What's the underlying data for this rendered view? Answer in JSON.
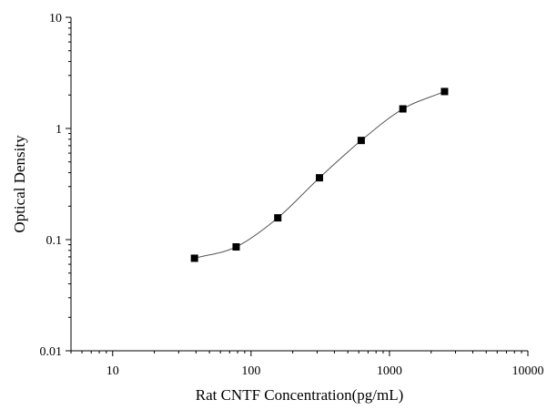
{
  "chart_data": {
    "type": "scatter",
    "title": "",
    "xlabel": "Rat CNTF Concentration(pg/mL)",
    "ylabel": "Optical Density",
    "x_scale": "log",
    "y_scale": "log",
    "xlim": [
      5,
      10000
    ],
    "ylim": [
      0.01,
      10
    ],
    "x_ticks": [
      {
        "value": 10,
        "label": "10"
      },
      {
        "value": 100,
        "label": "100"
      },
      {
        "value": 1000,
        "label": "1000"
      },
      {
        "value": 10000,
        "label": "10000"
      }
    ],
    "y_ticks": [
      {
        "value": 0.01,
        "label": "0.01"
      },
      {
        "value": 0.1,
        "label": "0.1"
      },
      {
        "value": 1,
        "label": "1"
      },
      {
        "value": 10,
        "label": "10"
      }
    ],
    "grid": false,
    "legend": "none",
    "series": [
      {
        "marker": "square",
        "fitted_curve": true,
        "color": "#000000",
        "curve_color": "#555555",
        "x": [
          39,
          78,
          156,
          312,
          625,
          1250,
          2500
        ],
        "y": [
          0.068,
          0.086,
          0.157,
          0.36,
          0.78,
          1.5,
          2.15
        ]
      }
    ]
  }
}
